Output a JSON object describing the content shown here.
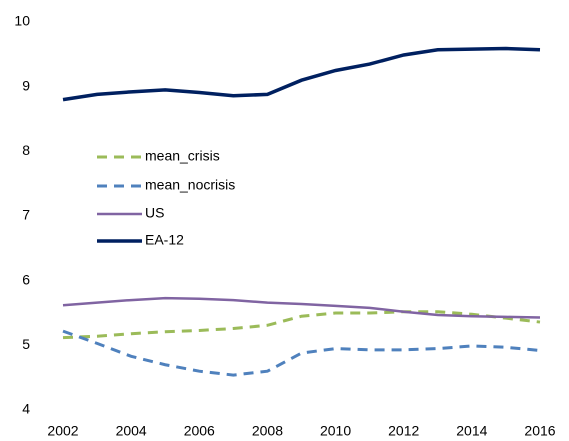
{
  "chart_data": {
    "type": "line",
    "x": [
      2002,
      2003,
      2004,
      2005,
      2006,
      2007,
      2008,
      2009,
      2010,
      2011,
      2012,
      2013,
      2014,
      2015,
      2016
    ],
    "series": [
      {
        "name": "mean_crisis",
        "color": "#9bbb59",
        "dash": true,
        "values": [
          5.12,
          5.14,
          5.18,
          5.21,
          5.23,
          5.26,
          5.31,
          5.45,
          5.5,
          5.5,
          5.52,
          5.52,
          5.48,
          5.42,
          5.36
        ]
      },
      {
        "name": "mean_nocrisis",
        "color": "#4f81bd",
        "dash": true,
        "values": [
          5.22,
          5.03,
          4.83,
          4.7,
          4.6,
          4.54,
          4.6,
          4.88,
          4.95,
          4.93,
          4.93,
          4.95,
          4.99,
          4.97,
          4.92
        ]
      },
      {
        "name": "US",
        "color": "#8064a2",
        "dash": false,
        "values": [
          5.62,
          5.66,
          5.7,
          5.73,
          5.72,
          5.7,
          5.66,
          5.64,
          5.61,
          5.58,
          5.52,
          5.47,
          5.45,
          5.44,
          5.43
        ]
      },
      {
        "name": "EA-12",
        "color": "#002060",
        "dash": false,
        "values": [
          8.8,
          8.88,
          8.92,
          8.95,
          8.91,
          8.86,
          8.88,
          9.1,
          9.25,
          9.35,
          9.49,
          9.57,
          9.58,
          9.59,
          9.57
        ]
      }
    ],
    "xlim": [
      2002,
      2016
    ],
    "xticks": [
      2002,
      2004,
      2006,
      2008,
      2010,
      2012,
      2014,
      2016
    ],
    "ylim": [
      4,
      10
    ],
    "yticks": [
      4,
      5,
      6,
      7,
      8,
      9,
      10
    ],
    "legend": "left"
  }
}
